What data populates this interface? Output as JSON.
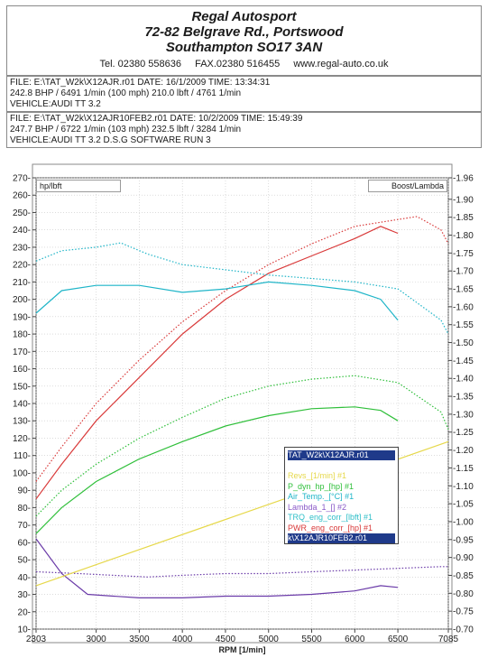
{
  "header": {
    "company": "Regal Autosport",
    "address_line1": "72-82 Belgrave Rd., Portswood",
    "address_line2": "Southampton SO17 3AN",
    "tel": "Tel. 02380 558636",
    "fax": "FAX.02380 516455",
    "web": "www.regal-auto.co.uk"
  },
  "runs": [
    {
      "file_line": "FILE: E:\\TAT_W2k\\X12AJR.r01  DATE: 16/1/2009  TIME: 13:34:31",
      "power_line": "242.8 BHP / 6491 1/min (100 mph)     210.0 lbft / 4761 1/min",
      "vehicle_line": "VEHICLE:AUDI TT 3.2"
    },
    {
      "file_line": "FILE: E:\\TAT_W2k\\X12AJR10FEB2.r01  DATE: 10/2/2009  TIME: 15:49:39",
      "power_line": "247.7 BHP / 6722 1/min (103 mph)     232.5 lbft / 3284 1/min",
      "vehicle_line": "VEHICLE:AUDI TT 3.2 D.S.G SOFTWARE RUN 3"
    }
  ],
  "legend": {
    "items": [
      "TAT_W2k\\X12AJR.r01",
      "",
      "Revs_[1/min] #1",
      "P_dyn_hp_[hp] #1",
      "Air_Temp._[°C] #1",
      "Lambda_1_[] #2",
      "TRQ_eng_corr_[lbft] #1",
      "PWR_eng_corr_[hp] #1",
      "k\\X12AJR10FEB2.r01"
    ],
    "colors": [
      "#ffffff",
      "#ffffff",
      "#e6d84a",
      "#2fbf3a",
      "#1fb5c8",
      "#8a5ac8",
      "#2fbfc8",
      "#d93a3a",
      "#ffffff"
    ]
  },
  "chart_data": {
    "type": "line",
    "left_axis_label": "hp/lbft",
    "right_axis_label": "Boost/Lambda",
    "xlabel": "RPM  [1/min]",
    "xlim": [
      2303,
      7085
    ],
    "xticks": [
      2303,
      3000,
      3500,
      4000,
      4500,
      5000,
      5500,
      6000,
      6500,
      7085
    ],
    "ylim_left": [
      10,
      270
    ],
    "yticks_left": [
      10,
      20,
      30,
      40,
      50,
      60,
      70,
      80,
      90,
      100,
      110,
      120,
      130,
      140,
      150,
      160,
      170,
      180,
      190,
      200,
      210,
      220,
      230,
      240,
      250,
      260,
      270
    ],
    "ylim_right": [
      0.7,
      1.96
    ],
    "yticks_right": [
      "0.70",
      "0.75",
      "0.80",
      "0.85",
      "0.90",
      "0.95",
      "1.00",
      "1.05",
      "1.10",
      "1.15",
      "1.20",
      "1.25",
      "1.30",
      "1.35",
      "1.40",
      "1.45",
      "1.50",
      "1.55",
      "1.60",
      "1.65",
      "1.70",
      "1.75",
      "1.80",
      "1.85",
      "1.90",
      "1.96"
    ],
    "grid": true,
    "series": [
      {
        "color": "#d93a3a",
        "dash": false,
        "x": [
          2303,
          2600,
          3000,
          3500,
          4000,
          4500,
          5000,
          5500,
          6000,
          6300,
          6500
        ],
        "y": [
          85,
          105,
          130,
          155,
          180,
          200,
          215,
          225,
          235,
          242,
          238
        ]
      },
      {
        "color": "#d93a3a",
        "dash": true,
        "x": [
          2303,
          2600,
          3000,
          3500,
          4000,
          4500,
          5000,
          5500,
          6000,
          6500,
          6722,
          7000,
          7085
        ],
        "y": [
          95,
          115,
          140,
          165,
          187,
          205,
          220,
          232,
          242,
          246,
          247.7,
          240,
          232
        ]
      },
      {
        "color": "#2fbf3a",
        "dash": false,
        "x": [
          2303,
          2600,
          3000,
          3500,
          4000,
          4500,
          5000,
          5500,
          6000,
          6300,
          6500
        ],
        "y": [
          65,
          80,
          95,
          108,
          118,
          127,
          133,
          137,
          138,
          136,
          130
        ]
      },
      {
        "color": "#2fbf3a",
        "dash": true,
        "x": [
          2303,
          2600,
          3000,
          3500,
          4000,
          4500,
          5000,
          5500,
          6000,
          6500,
          7000,
          7085
        ],
        "y": [
          75,
          90,
          105,
          120,
          132,
          143,
          150,
          154,
          156,
          152,
          135,
          125
        ]
      },
      {
        "color": "#1fb5c8",
        "dash": false,
        "x": [
          2303,
          2600,
          3000,
          3500,
          4000,
          4500,
          5000,
          5500,
          6000,
          6300,
          6500
        ],
        "y": [
          192,
          205,
          208,
          208,
          204,
          206,
          210,
          208,
          205,
          200,
          188
        ]
      },
      {
        "color": "#1fb5c8",
        "dash": true,
        "x": [
          2303,
          2600,
          3000,
          3284,
          3600,
          4000,
          4500,
          5000,
          5500,
          6000,
          6500,
          7000,
          7085
        ],
        "y": [
          222,
          228,
          230,
          232.5,
          226,
          220,
          217,
          214,
          212,
          210,
          206,
          188,
          180
        ]
      },
      {
        "color": "#6a3aa8",
        "dash": false,
        "x": [
          2303,
          2600,
          2900,
          3200,
          3500,
          4000,
          4500,
          5000,
          5500,
          6000,
          6300,
          6500
        ],
        "y": [
          62,
          42,
          30,
          29,
          28,
          28,
          29,
          29,
          30,
          32,
          35,
          34
        ]
      },
      {
        "color": "#6a3aa8",
        "dash": true,
        "x": [
          2303,
          2800,
          3200,
          3600,
          4000,
          4500,
          5000,
          5500,
          6000,
          6500,
          7000,
          7085
        ],
        "y": [
          43,
          42,
          41,
          40,
          41,
          42,
          42,
          43,
          44,
          45,
          46,
          46
        ]
      },
      {
        "color": "#e6d84a",
        "dash": false,
        "x": [
          2303,
          7085
        ],
        "y": [
          35,
          118
        ]
      }
    ]
  }
}
